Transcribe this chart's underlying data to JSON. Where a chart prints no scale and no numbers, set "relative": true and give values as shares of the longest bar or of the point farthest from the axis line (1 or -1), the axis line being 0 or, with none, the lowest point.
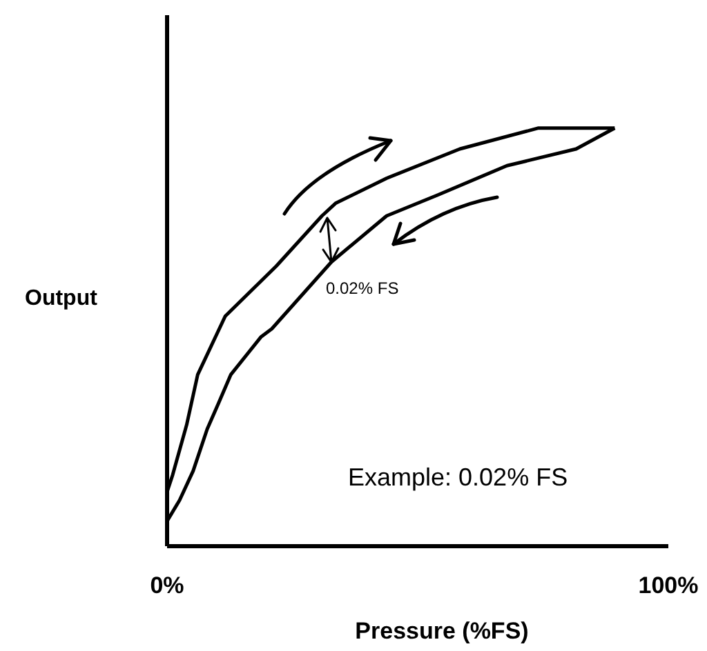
{
  "chart_data": {
    "type": "line",
    "relative": true,
    "xlabel": "Pressure (%FS)",
    "ylabel": "Output",
    "xlim": [
      0,
      100
    ],
    "xticks": [
      {
        "value": 0,
        "label": "0%"
      },
      {
        "value": 100,
        "label": "100%"
      }
    ],
    "grid": false,
    "legend": false,
    "marker": "none",
    "line_style": "solid",
    "annotations": [
      "0.02% FS",
      "Example: 0.02% FS"
    ],
    "series": [
      {
        "color": "#000000",
        "x": [
          0,
          1.1,
          3.9,
          6.1,
          11.6,
          21.8,
          30.9,
          33.6,
          43.8,
          58.4,
          74.1,
          89.3
        ],
        "values": [
          0.13,
          0.17,
          0.29,
          0.41,
          0.55,
          0.67,
          0.79,
          0.82,
          0.88,
          0.95,
          1.0,
          1.0
        ]
      },
      {
        "color": "#000000",
        "x": [
          89.3,
          81.6,
          67.8,
          54.0,
          43.8,
          32.8,
          20.9,
          18.7,
          12.7,
          10.2,
          8.0,
          5.2,
          2.5,
          0
        ],
        "values": [
          1.0,
          0.95,
          0.91,
          0.84,
          0.79,
          0.68,
          0.52,
          0.5,
          0.41,
          0.34,
          0.28,
          0.18,
          0.11,
          0.06
        ]
      }
    ]
  }
}
